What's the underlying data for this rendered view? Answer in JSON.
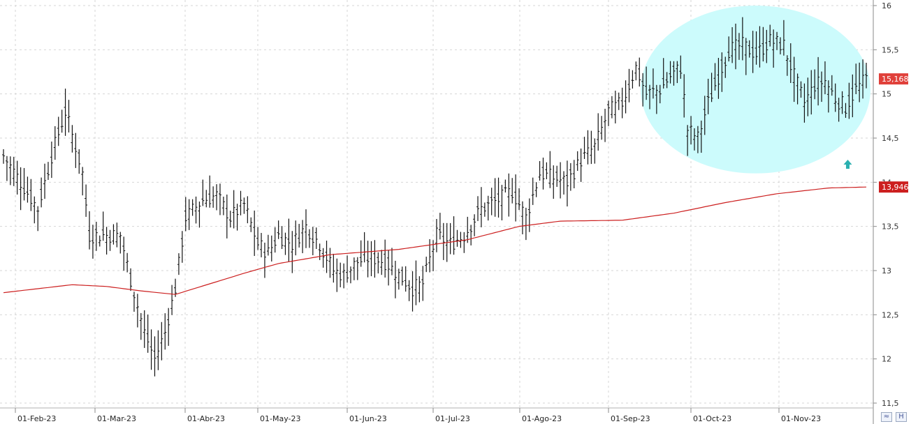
{
  "chart_data": {
    "type": "ohlc",
    "y_axis": {
      "range": [
        11.5,
        16.0
      ],
      "ticks": [
        "11,5",
        "12",
        "12,5",
        "13",
        "13,5",
        "14",
        "14,5",
        "15",
        "15,5",
        "16"
      ],
      "tick_values": [
        11.5,
        12,
        12.5,
        13,
        13.5,
        14,
        14.5,
        15,
        15.5,
        16
      ],
      "position": "right",
      "grid": true
    },
    "x_axis": {
      "labels": [
        "01-Feb-23",
        "01-Mar-23",
        "01-Abr-23",
        "01-May-23",
        "01-Jun-23",
        "01-Jul-23",
        "01-Ago-23",
        "01-Sep-23",
        "01-Oct-23",
        "01-Nov-23"
      ],
      "grid": true
    },
    "price_series": {
      "name": "",
      "waypoints": [
        {
          "i": 0,
          "v": 14.3
        },
        {
          "i": 5,
          "v": 14.0
        },
        {
          "i": 10,
          "v": 13.7
        },
        {
          "i": 14,
          "v": 14.3
        },
        {
          "i": 18,
          "v": 14.8
        },
        {
          "i": 21,
          "v": 14.4
        },
        {
          "i": 23,
          "v": 14.1
        },
        {
          "i": 25,
          "v": 13.4
        },
        {
          "i": 30,
          "v": 13.4
        },
        {
          "i": 34,
          "v": 13.4
        },
        {
          "i": 37,
          "v": 12.9
        },
        {
          "i": 41,
          "v": 12.3
        },
        {
          "i": 44,
          "v": 12.0
        },
        {
          "i": 47,
          "v": 12.3
        },
        {
          "i": 50,
          "v": 12.8
        },
        {
          "i": 53,
          "v": 13.6
        },
        {
          "i": 58,
          "v": 13.8
        },
        {
          "i": 62,
          "v": 13.85
        },
        {
          "i": 66,
          "v": 13.6
        },
        {
          "i": 70,
          "v": 13.75
        },
        {
          "i": 74,
          "v": 13.3
        },
        {
          "i": 77,
          "v": 13.2
        },
        {
          "i": 80,
          "v": 13.4
        },
        {
          "i": 84,
          "v": 13.3
        },
        {
          "i": 88,
          "v": 13.5
        },
        {
          "i": 92,
          "v": 13.3
        },
        {
          "i": 96,
          "v": 13.0
        },
        {
          "i": 99,
          "v": 12.95
        },
        {
          "i": 103,
          "v": 13.1
        },
        {
          "i": 107,
          "v": 13.15
        },
        {
          "i": 111,
          "v": 13.1
        },
        {
          "i": 115,
          "v": 12.95
        },
        {
          "i": 119,
          "v": 12.8
        },
        {
          "i": 122,
          "v": 12.85
        },
        {
          "i": 126,
          "v": 13.4
        },
        {
          "i": 130,
          "v": 13.3
        },
        {
          "i": 134,
          "v": 13.4
        },
        {
          "i": 139,
          "v": 13.7
        },
        {
          "i": 144,
          "v": 13.8
        },
        {
          "i": 148,
          "v": 13.9
        },
        {
          "i": 152,
          "v": 13.6
        },
        {
          "i": 156,
          "v": 14.1
        },
        {
          "i": 160,
          "v": 14.05
        },
        {
          "i": 164,
          "v": 14.0
        },
        {
          "i": 168,
          "v": 14.25
        },
        {
          "i": 172,
          "v": 14.4
        },
        {
          "i": 176,
          "v": 14.8
        },
        {
          "i": 180,
          "v": 14.9
        },
        {
          "i": 184,
          "v": 15.3
        },
        {
          "i": 187,
          "v": 15.0
        },
        {
          "i": 191,
          "v": 15.05
        },
        {
          "i": 194,
          "v": 15.2
        },
        {
          "i": 197,
          "v": 15.3
        },
        {
          "i": 199,
          "v": 14.6
        },
        {
          "i": 202,
          "v": 14.5
        },
        {
          "i": 205,
          "v": 14.9
        },
        {
          "i": 208,
          "v": 15.2
        },
        {
          "i": 211,
          "v": 15.5
        },
        {
          "i": 215,
          "v": 15.55
        },
        {
          "i": 219,
          "v": 15.45
        },
        {
          "i": 223,
          "v": 15.6
        },
        {
          "i": 227,
          "v": 15.55
        },
        {
          "i": 230,
          "v": 15.2
        },
        {
          "i": 233,
          "v": 14.9
        },
        {
          "i": 236,
          "v": 15.1
        },
        {
          "i": 239,
          "v": 15.15
        },
        {
          "i": 242,
          "v": 14.95
        },
        {
          "i": 245,
          "v": 14.85
        },
        {
          "i": 248,
          "v": 15.05
        },
        {
          "i": 251,
          "v": 15.17
        }
      ],
      "bar_count": 252,
      "last_value_label": "15,168",
      "label_color": "#e0403a"
    },
    "moving_average": {
      "name": "",
      "color": "#cc1f1f",
      "waypoints": [
        {
          "i": 0,
          "v": 12.75
        },
        {
          "i": 20,
          "v": 12.84
        },
        {
          "i": 30,
          "v": 12.82
        },
        {
          "i": 40,
          "v": 12.77
        },
        {
          "i": 50,
          "v": 12.73
        },
        {
          "i": 60,
          "v": 12.85
        },
        {
          "i": 70,
          "v": 12.97
        },
        {
          "i": 80,
          "v": 13.08
        },
        {
          "i": 95,
          "v": 13.18
        },
        {
          "i": 115,
          "v": 13.24
        },
        {
          "i": 135,
          "v": 13.35
        },
        {
          "i": 150,
          "v": 13.5
        },
        {
          "i": 162,
          "v": 13.56
        },
        {
          "i": 180,
          "v": 13.57
        },
        {
          "i": 195,
          "v": 13.65
        },
        {
          "i": 210,
          "v": 13.77
        },
        {
          "i": 225,
          "v": 13.87
        },
        {
          "i": 240,
          "v": 13.935
        },
        {
          "i": 251,
          "v": 13.946
        }
      ],
      "last_value_label": "13,946",
      "label_color": "#cc1f1f"
    },
    "annotations": [
      {
        "type": "ellipse",
        "fill": "#ccfbfc",
        "covers_index_range": [
          187,
          251
        ],
        "covers_value_range": [
          14.1,
          16.0
        ]
      },
      {
        "type": "arrow-up",
        "color": "#2bb0b0",
        "index": 245,
        "value": 14.2
      }
    ]
  }
}
